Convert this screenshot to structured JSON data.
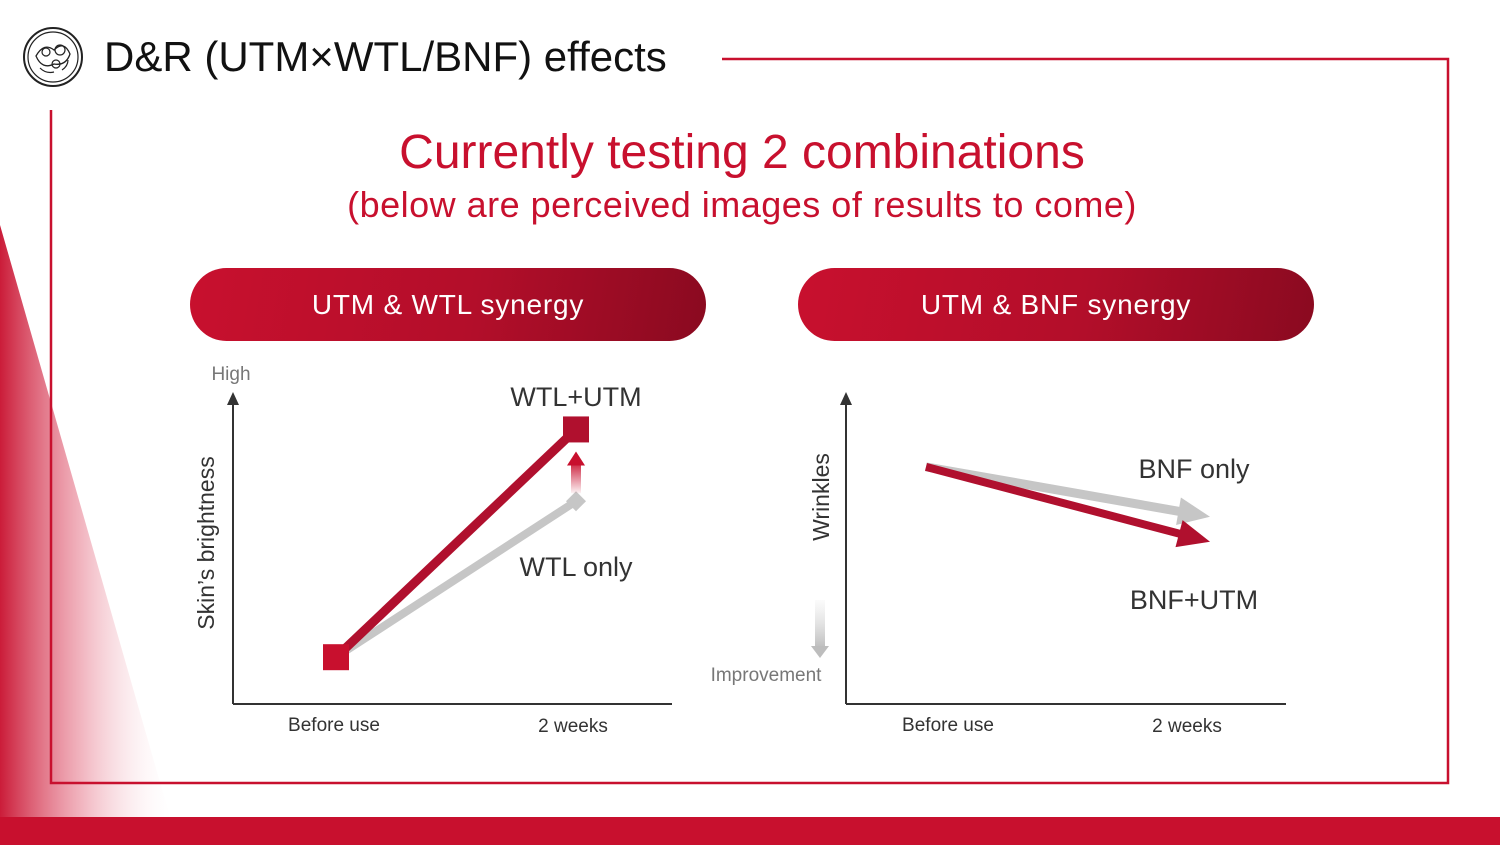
{
  "header": {
    "title": "D&R (UTM×WTL/BNF) effects",
    "logo_icon": "floral-emblem-icon"
  },
  "headline": {
    "main": "Currently testing 2 combinations",
    "sub": "(below are perceived images of results to come)"
  },
  "colors": {
    "brand_red": "#c8102e",
    "dark_red": "#b0102e",
    "gray_line": "#c6c6c6",
    "axis": "#333333"
  },
  "chart_data": [
    {
      "type": "line",
      "pill_label": "UTM & WTL synergy",
      "title": "UTM & WTL synergy",
      "ylabel": "Skin’s brightness",
      "y_indicator": "High",
      "categories": [
        "Before use",
        "2 weeks"
      ],
      "ylim": [
        0,
        10
      ],
      "series": [
        {
          "name": "WTL+UTM",
          "values": [
            1.5,
            8.8
          ],
          "color": "#b0102e"
        },
        {
          "name": "WTL only",
          "values": [
            1.5,
            6.5
          ],
          "color": "#c6c6c6"
        }
      ]
    },
    {
      "type": "line",
      "pill_label": "UTM & BNF synergy",
      "title": "UTM & BNF synergy",
      "ylabel": "Wrinkles",
      "y_indicator": "Improvement",
      "categories": [
        "Before use",
        "2 weeks"
      ],
      "ylim": [
        0,
        10
      ],
      "series": [
        {
          "name": "BNF only",
          "values": [
            7.6,
            6.0
          ],
          "color": "#c6c6c6"
        },
        {
          "name": "BNF+UTM",
          "values": [
            7.6,
            5.2
          ],
          "color": "#b0102e"
        }
      ]
    }
  ]
}
